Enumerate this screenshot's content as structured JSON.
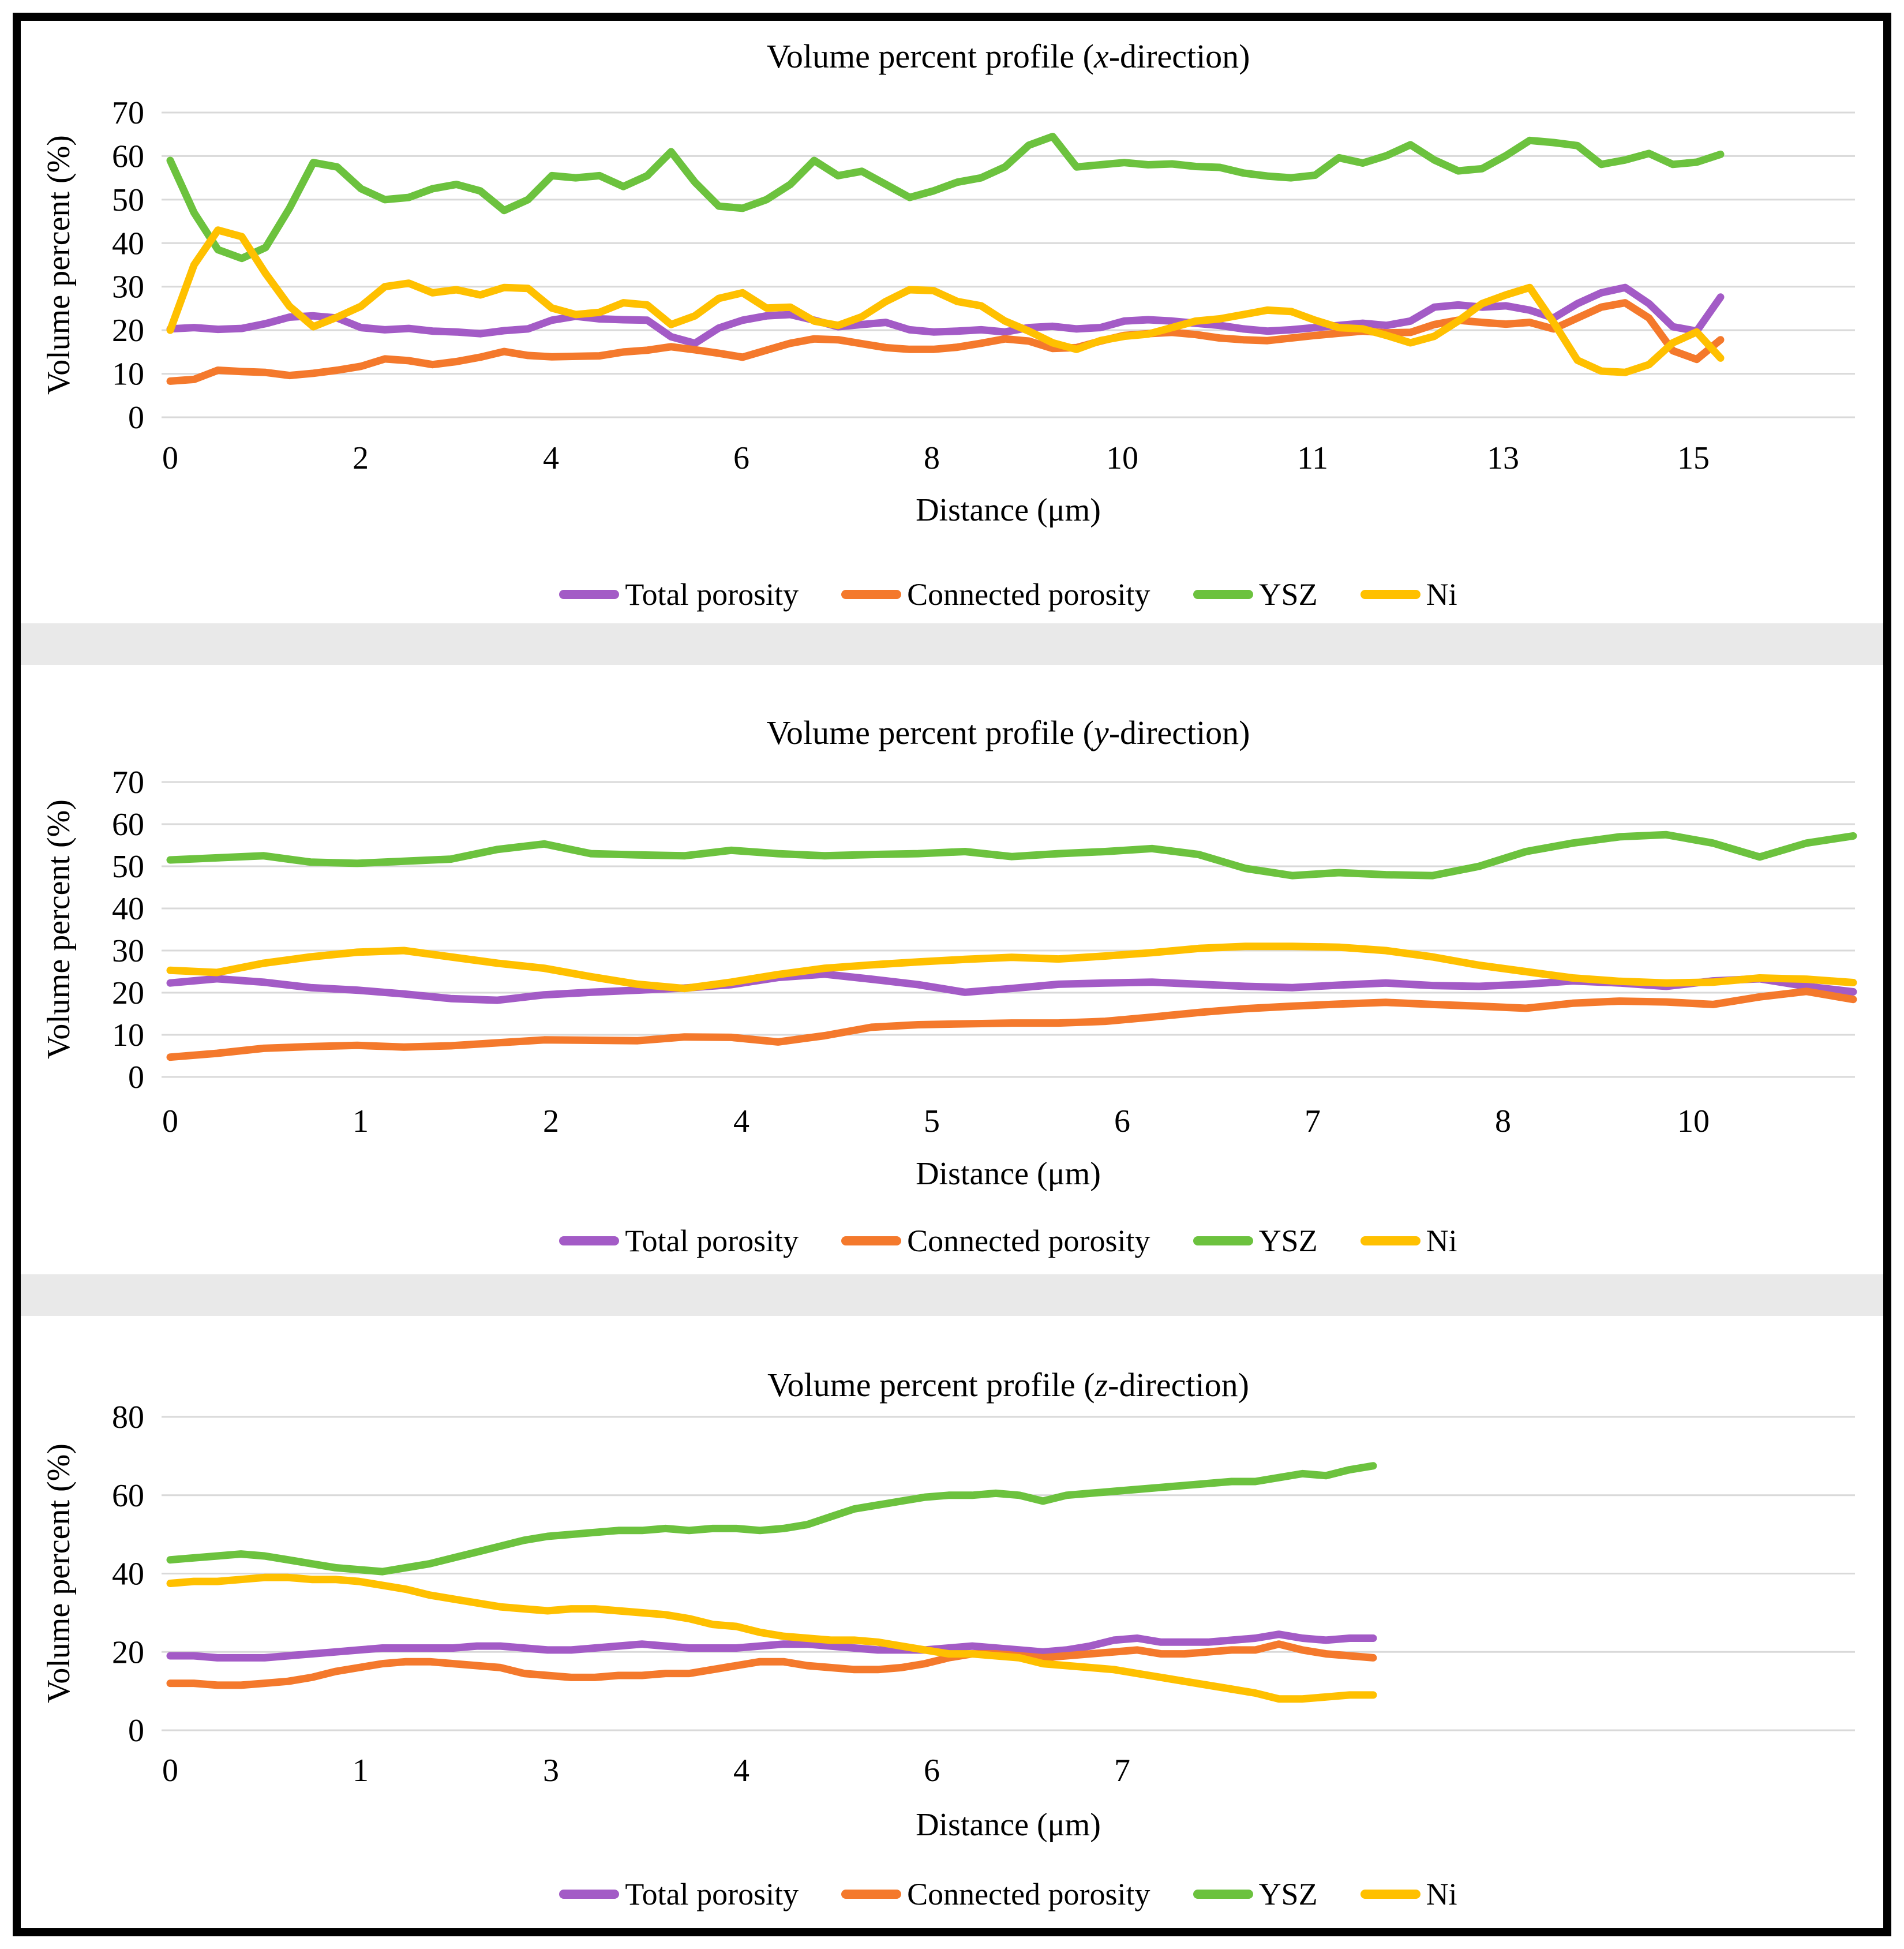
{
  "figure": {
    "background": "#ffffff",
    "border_color": "#000000",
    "separator_color": "#e9e9e9",
    "gridline_color": "#d9d9d9"
  },
  "charts": [
    {
      "id": "x",
      "title": "Volume percent profile (x-direction)",
      "title_prefix": "Volume percent profile (",
      "title_dir": "x",
      "title_suffix": "-direction)",
      "ylabel": "Volume percent (%)",
      "xlabel": "Distance (μm)",
      "chart_data": {
        "type": "line",
        "title": "Volume percent profile (x-direction)",
        "xlabel": "Distance (μm)",
        "ylabel": "Volume percent (%)",
        "ylim": [
          0,
          70
        ],
        "ytick_step": 10,
        "yticklabels": [
          "0",
          "10",
          "20",
          "30",
          "40",
          "50",
          "60",
          "70"
        ],
        "xticklabels": [
          "0",
          "2",
          "4",
          "6",
          "8",
          "10",
          "11",
          "13",
          "15"
        ],
        "grid": true,
        "legend_position": "bottom",
        "series": [
          {
            "key": "total-porosity",
            "name": "Total porosity",
            "color": "#a35bc6",
            "values": [
              20.3,
              20.6,
              20.2,
              20.4,
              21.5,
              23,
              23.3,
              22.8,
              20.6,
              20.1,
              20.4,
              19.8,
              19.6,
              19.2,
              19.9,
              20.3,
              22.3,
              23.2,
              22.6,
              22.4,
              22.3,
              18.5,
              17,
              20.5,
              22.3,
              23.3,
              23.6,
              22.3,
              20.8,
              21.3,
              21.8,
              20.1,
              19.6,
              19.8,
              20.1,
              19.6,
              20.6,
              20.9,
              20.3,
              20.6,
              22.1,
              22.4,
              22.1,
              21.6,
              21.1,
              20.3,
              19.8,
              20.1,
              20.6,
              21.1,
              21.6,
              21.1,
              22.1,
              25.3,
              25.8,
              25.3,
              25.6,
              24.6,
              22.8,
              26.1,
              28.6,
              29.8,
              26.1,
              20.8,
              19.8,
              27.6
            ]
          },
          {
            "key": "connected-porosity",
            "name": "Connected porosity",
            "color": "#f4792c",
            "values": [
              8.3,
              8.7,
              10.8,
              10.5,
              10.3,
              9.6,
              10.1,
              10.8,
              11.7,
              13.4,
              13,
              12.1,
              12.8,
              13.8,
              15.1,
              14.2,
              13.9,
              14,
              14.1,
              15,
              15.4,
              16.2,
              15.5,
              14.7,
              13.8,
              15.4,
              17,
              18,
              17.8,
              16.9,
              16,
              15.6,
              15.6,
              16.1,
              17,
              18,
              17.5,
              15.8,
              16,
              17.5,
              18.8,
              19.2,
              19.5,
              19,
              18.2,
              17.8,
              17.6,
              18.2,
              18.8,
              19.3,
              19.8,
              19.4,
              19.5,
              21.3,
              22.3,
              21.8,
              21.4,
              21.8,
              20.3,
              22.8,
              25.3,
              26.3,
              22.8,
              15.3,
              13.3,
              17.8
            ]
          },
          {
            "key": "ysz",
            "name": "YSZ",
            "color": "#6cc23e",
            "values": [
              59,
              47,
              38.5,
              36.5,
              39,
              48,
              58.5,
              57.5,
              52.5,
              50,
              50.5,
              52.5,
              53.5,
              52,
              47.5,
              50,
              55.5,
              55,
              55.5,
              53,
              55.5,
              61,
              54,
              48.5,
              48,
              50,
              53.5,
              59,
              55.5,
              56.5,
              53.5,
              50.5,
              52,
              54,
              55,
              57.5,
              62.5,
              64.5,
              57.5,
              58,
              58.5,
              58,
              58.2,
              57.6,
              57.4,
              56.1,
              55.4,
              55,
              55.6,
              59.6,
              58.4,
              60.1,
              62.6,
              59.1,
              56.6,
              57.1,
              60.1,
              63.6,
              63.1,
              62.4,
              58.1,
              59.1,
              60.6,
              58.1,
              58.6,
              60.4
            ]
          },
          {
            "key": "ni",
            "name": "Ni",
            "color": "#ffc000",
            "values": [
              20,
              35,
              43,
              41.5,
              33,
              25.5,
              20.8,
              23,
              25.5,
              30,
              30.8,
              28.6,
              29.3,
              28.1,
              29.8,
              29.6,
              25.1,
              23.6,
              24.1,
              26.3,
              25.8,
              21.3,
              23.3,
              27.3,
              28.6,
              25.1,
              25.3,
              22.1,
              21.1,
              23.1,
              26.6,
              29.3,
              29.1,
              26.6,
              25.6,
              22.1,
              19.8,
              17.1,
              15.6,
              17.6,
              18.6,
              19.1,
              20.6,
              22.1,
              22.6,
              23.6,
              24.6,
              24.3,
              22.3,
              20.6,
              20.3,
              18.8,
              17.1,
              18.6,
              22.1,
              26.1,
              28.1,
              29.8,
              21.8,
              13.1,
              10.6,
              10.3,
              12.1,
              17.1,
              19.6,
              13.6
            ]
          }
        ]
      }
    },
    {
      "id": "y",
      "title": "Volume percent profile (y-direction)",
      "title_prefix": "Volume percent profile (",
      "title_dir": "y",
      "title_suffix": "-direction)",
      "ylabel": "Volume percent (%)",
      "xlabel": "Distance (μm)",
      "chart_data": {
        "type": "line",
        "title": "Volume percent profile (y-direction)",
        "xlabel": "Distance (μm)",
        "ylabel": "Volume percent (%)",
        "ylim": [
          0,
          70
        ],
        "ytick_step": 10,
        "yticklabels": [
          "0",
          "10",
          "20",
          "30",
          "40",
          "50",
          "60",
          "70"
        ],
        "xticklabels": [
          "0",
          "1",
          "2",
          "4",
          "5",
          "6",
          "7",
          "8",
          "10"
        ],
        "grid": true,
        "legend_position": "bottom",
        "series": [
          {
            "key": "total-porosity",
            "name": "Total porosity",
            "color": "#a35bc6",
            "values": [
              22.3,
              23.3,
              22.5,
              21.2,
              20.6,
              19.7,
              18.6,
              18.2,
              19.5,
              20.1,
              20.6,
              21.1,
              21.9,
              23.6,
              24.4,
              23.2,
              21.9,
              20.1,
              21,
              22,
              22.3,
              22.5,
              22,
              21.5,
              21.2,
              21.8,
              22.3,
              21.7,
              21.5,
              22,
              22.8,
              22.3,
              21.5,
              22.8,
              23.3,
              21.5,
              20.2
            ]
          },
          {
            "key": "connected-porosity",
            "name": "Connected porosity",
            "color": "#f4792c",
            "values": [
              4.7,
              5.6,
              6.8,
              7.2,
              7.5,
              7.1,
              7.4,
              8.1,
              8.8,
              8.7,
              8.6,
              9.5,
              9.4,
              8.3,
              9.8,
              11.8,
              12.4,
              12.6,
              12.8,
              12.8,
              13.2,
              14.2,
              15.3,
              16.2,
              16.8,
              17.3,
              17.7,
              17.2,
              16.8,
              16.3,
              17.5,
              18,
              17.8,
              17.2,
              19,
              20.3,
              18.4
            ]
          },
          {
            "key": "ysz",
            "name": "YSZ",
            "color": "#6cc23e",
            "values": [
              51.5,
              52,
              52.5,
              51,
              50.7,
              51.2,
              51.7,
              54,
              55.3,
              53,
              52.7,
              52.5,
              53.8,
              53,
              52.5,
              52.8,
              53,
              53.5,
              52.3,
              53,
              53.5,
              54.2,
              52.8,
              49.5,
              47.8,
              48.5,
              48,
              47.8,
              50,
              53.5,
              55.5,
              57,
              57.5,
              55.5,
              52.2,
              55.5,
              57.2
            ]
          },
          {
            "key": "ni",
            "name": "Ni",
            "color": "#ffc000",
            "values": [
              25.3,
              24.8,
              27,
              28.5,
              29.6,
              30,
              28.5,
              27,
              25.8,
              23.8,
              22,
              21,
              22.5,
              24.3,
              25.8,
              26.6,
              27.3,
              27.9,
              28.4,
              28,
              28.7,
              29.5,
              30.5,
              31,
              31,
              30.8,
              30,
              28.5,
              26.5,
              25,
              23.5,
              22.7,
              22.3,
              22.5,
              23.5,
              23.2,
              22.4
            ]
          }
        ]
      }
    },
    {
      "id": "z",
      "title": "Volume percent profile (z-direction)",
      "title_prefix": "Volume percent profile (",
      "title_dir": "z",
      "title_suffix": "-direction)",
      "ylabel": "Volume percent (%)",
      "xlabel": "Distance (μm)",
      "chart_data": {
        "type": "line",
        "title": "Volume percent profile (z-direction)",
        "xlabel": "Distance (μm)",
        "ylabel": "Volume percent (%)",
        "ylim": [
          0,
          80
        ],
        "ytick_step": 20,
        "yticklabels": [
          "0",
          "20",
          "40",
          "60",
          "80"
        ],
        "xticklabels": [
          "0",
          "1",
          "3",
          "4",
          "6",
          "7"
        ],
        "grid": true,
        "legend_position": "bottom",
        "series": [
          {
            "key": "total-porosity",
            "name": "Total porosity",
            "color": "#a35bc6",
            "values": [
              19,
              19,
              18.5,
              18.5,
              18.5,
              19,
              19.5,
              20,
              20.5,
              21,
              21,
              21,
              21,
              21.5,
              21.5,
              21,
              20.5,
              20.5,
              21,
              21.5,
              22,
              21.5,
              21,
              21,
              21,
              21.5,
              22,
              22,
              21.5,
              21,
              20.5,
              20.5,
              20.5,
              21,
              21.5,
              21,
              20.5,
              20,
              20.5,
              21.5,
              23,
              23.5,
              22.5,
              22.5,
              22.5,
              23,
              23.5,
              24.5,
              23.5,
              23,
              23.5,
              23.5
            ]
          },
          {
            "key": "connected-porosity",
            "name": "Connected porosity",
            "color": "#f4792c",
            "values": [
              12,
              12,
              11.5,
              11.5,
              12,
              12.5,
              13.5,
              15,
              16,
              17,
              17.5,
              17.5,
              17,
              16.5,
              16,
              14.5,
              14,
              13.5,
              13.5,
              14,
              14,
              14.5,
              14.5,
              15.5,
              16.5,
              17.5,
              17.5,
              16.5,
              16,
              15.5,
              15.5,
              16,
              17,
              18.5,
              19.5,
              19.5,
              19,
              18.5,
              19,
              19.5,
              20,
              20.5,
              19.5,
              19.5,
              20,
              20.5,
              20.5,
              22,
              20.5,
              19.5,
              19,
              18.5
            ]
          },
          {
            "key": "ysz",
            "name": "YSZ",
            "color": "#6cc23e",
            "values": [
              43.5,
              44,
              44.5,
              45,
              44.5,
              43.5,
              42.5,
              41.5,
              41,
              40.5,
              41.5,
              42.5,
              44,
              45.5,
              47,
              48.5,
              49.5,
              50,
              50.5,
              51,
              51,
              51.5,
              51,
              51.5,
              51.5,
              51,
              51.5,
              52.5,
              54.5,
              56.5,
              57.5,
              58.5,
              59.5,
              60,
              60,
              60.5,
              60,
              58.5,
              60,
              60.5,
              61,
              61.5,
              62,
              62.5,
              63,
              63.5,
              63.5,
              64.5,
              65.5,
              65,
              66.5,
              67.5
            ]
          },
          {
            "key": "ni",
            "name": "Ni",
            "color": "#ffc000",
            "values": [
              37.5,
              38,
              38,
              38.5,
              39,
              39,
              38.5,
              38.5,
              38,
              37,
              36,
              34.5,
              33.5,
              32.5,
              31.5,
              31,
              30.5,
              31,
              31,
              30.5,
              30,
              29.5,
              28.5,
              27,
              26.5,
              25,
              24,
              23.5,
              23,
              23,
              22.5,
              21.5,
              20.5,
              19.5,
              19.5,
              19,
              18.5,
              17,
              16.5,
              16,
              15.5,
              14.5,
              13.5,
              12.5,
              11.5,
              10.5,
              9.5,
              8,
              8,
              8.5,
              9,
              9
            ]
          }
        ]
      }
    }
  ]
}
